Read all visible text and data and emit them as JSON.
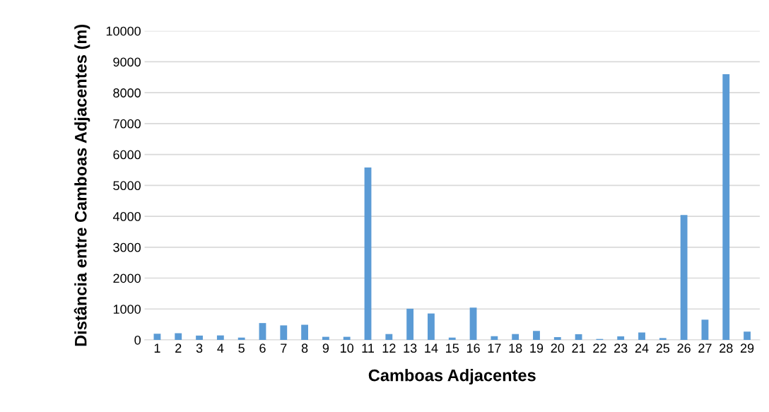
{
  "chart_data": {
    "type": "bar",
    "xlabel": "Camboas Adjacentes",
    "ylabel": "Distância entre Camboas Adjacentes (m)",
    "categories": [
      "1",
      "2",
      "3",
      "4",
      "5",
      "6",
      "7",
      "8",
      "9",
      "10",
      "11",
      "12",
      "13",
      "14",
      "15",
      "16",
      "17",
      "18",
      "19",
      "20",
      "21",
      "22",
      "23",
      "24",
      "25",
      "26",
      "27",
      "28",
      "29"
    ],
    "values": [
      200,
      215,
      140,
      145,
      75,
      545,
      470,
      490,
      100,
      100,
      5580,
      190,
      1010,
      855,
      75,
      1045,
      120,
      190,
      290,
      90,
      185,
      30,
      115,
      240,
      60,
      4040,
      655,
      8600,
      270
    ],
    "color": "#5b9bd5",
    "ylim": [
      0,
      10000
    ],
    "yticks": [
      0,
      1000,
      2000,
      3000,
      4000,
      5000,
      6000,
      7000,
      8000,
      9000,
      10000
    ],
    "grid": "y"
  }
}
